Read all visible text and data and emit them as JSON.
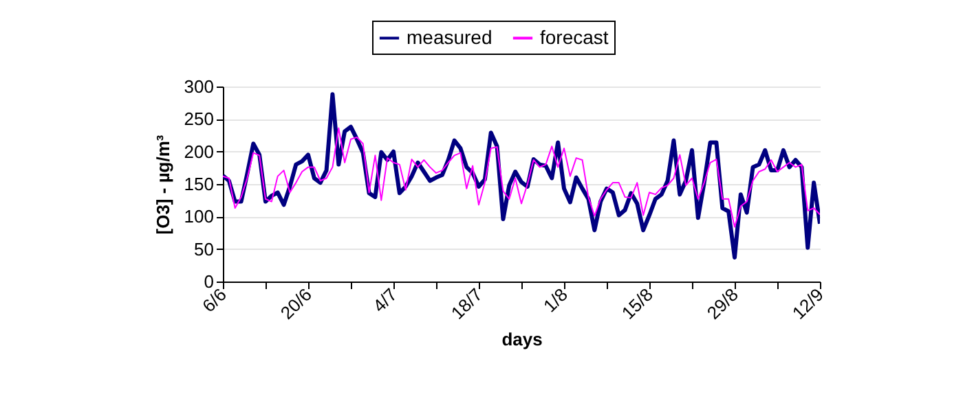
{
  "chart_data": {
    "type": "line",
    "xlabel": "days",
    "ylabel": "[O3] - µg/m³",
    "legend": "top",
    "grid": "y",
    "x": [
      "--06-06",
      "--06-07",
      "--06-08",
      "--06-09",
      "--06-10",
      "--06-11",
      "--06-12",
      "--06-13",
      "--06-14",
      "--06-15",
      "--06-16",
      "--06-17",
      "--06-18",
      "--06-19",
      "--06-20",
      "--06-21",
      "--06-22",
      "--06-23",
      "--06-24",
      "--06-25",
      "--06-26",
      "--06-27",
      "--06-28",
      "--06-29",
      "--06-30",
      "--07-01",
      "--07-02",
      "--07-03",
      "--07-04",
      "--07-05",
      "--07-06",
      "--07-07",
      "--07-08",
      "--07-09",
      "--07-10",
      "--07-11",
      "--07-12",
      "--07-13",
      "--07-14",
      "--07-15",
      "--07-16",
      "--07-17",
      "--07-18",
      "--07-19",
      "--07-20",
      "--07-21",
      "--07-22",
      "--07-23",
      "--07-24",
      "--07-25",
      "--07-26",
      "--07-27",
      "--07-28",
      "--07-29",
      "--07-30",
      "--07-31",
      "--08-01",
      "--08-02",
      "--08-03",
      "--08-04",
      "--08-05",
      "--08-06",
      "--08-07",
      "--08-08",
      "--08-09",
      "--08-10",
      "--08-11",
      "--08-12",
      "--08-13",
      "--08-14",
      "--08-15",
      "--08-16",
      "--08-17",
      "--08-18",
      "--08-19",
      "--08-20",
      "--08-21",
      "--08-22",
      "--08-23",
      "--08-24",
      "--08-25",
      "--08-26",
      "--08-27",
      "--08-28",
      "--08-29",
      "--08-30",
      "--08-31",
      "--09-01",
      "--09-02",
      "--09-03",
      "--09-04",
      "--09-05",
      "--09-06",
      "--09-07",
      "--09-08",
      "--09-09",
      "--09-10",
      "--09-11",
      "--09-12"
    ],
    "series": [
      {
        "name": "measured",
        "color": "#000080",
        "values": [
          163,
          155,
          123,
          123,
          166,
          212,
          195,
          123,
          132,
          137,
          118,
          146,
          180,
          185,
          195,
          159,
          152,
          171,
          288,
          180,
          231,
          238,
          219,
          198,
          136,
          130,
          199,
          187,
          200,
          136,
          146,
          162,
          183,
          169,
          155,
          160,
          164,
          187,
          217,
          205,
          176,
          167,
          146,
          157,
          229,
          208,
          96,
          148,
          169,
          153,
          146,
          188,
          180,
          178,
          159,
          214,
          143,
          122,
          160,
          143,
          127,
          79,
          123,
          143,
          137,
          102,
          110,
          136,
          120,
          79,
          102,
          127,
          134,
          155,
          217,
          134,
          155,
          202,
          98,
          152,
          214,
          214,
          113,
          108,
          37,
          134,
          106,
          176,
          180,
          202,
          171,
          171,
          202,
          176,
          187,
          176,
          52,
          152,
          89
        ]
      },
      {
        "name": "forecast",
        "color": "#ff00ff",
        "values": [
          162,
          159,
          113,
          130,
          159,
          198,
          194,
          127,
          123,
          162,
          171,
          137,
          152,
          169,
          176,
          176,
          155,
          159,
          176,
          236,
          183,
          219,
          222,
          212,
          137,
          194,
          125,
          190,
          183,
          180,
          141,
          188,
          176,
          187,
          176,
          167,
          171,
          183,
          194,
          198,
          143,
          178,
          118,
          152,
          205,
          207,
          139,
          127,
          159,
          120,
          150,
          187,
          176,
          180,
          208,
          176,
          205,
          162,
          190,
          187,
          130,
          101,
          127,
          141,
          152,
          152,
          130,
          129,
          152,
          102,
          137,
          134,
          144,
          148,
          159,
          195,
          148,
          159,
          127,
          152,
          183,
          188,
          127,
          127,
          84,
          116,
          123,
          155,
          169,
          173,
          187,
          169,
          176,
          183,
          176,
          180,
          109,
          113,
          103
        ]
      }
    ],
    "xlim": [
      "--06-06",
      "--09-12"
    ],
    "xticks": [
      {
        "value": "--06-06",
        "label": "6/6"
      },
      {
        "value": "--06-13",
        "label": null
      },
      {
        "value": "--06-20",
        "label": "20/6"
      },
      {
        "value": "--06-27",
        "label": null
      },
      {
        "value": "--07-04",
        "label": "4/7"
      },
      {
        "value": "--07-11",
        "label": null
      },
      {
        "value": "--07-18",
        "label": "18/7"
      },
      {
        "value": "--07-25",
        "label": null
      },
      {
        "value": "--08-01",
        "label": "1/8"
      },
      {
        "value": "--08-08",
        "label": null
      },
      {
        "value": "--08-15",
        "label": "15/8"
      },
      {
        "value": "--08-22",
        "label": null
      },
      {
        "value": "--08-29",
        "label": "29/8"
      },
      {
        "value": "--09-05",
        "label": null
      },
      {
        "value": "--09-12",
        "label": "12/9"
      }
    ],
    "ylim": [
      0,
      300
    ],
    "yticks": [
      0,
      50,
      100,
      150,
      200,
      250,
      300
    ]
  }
}
